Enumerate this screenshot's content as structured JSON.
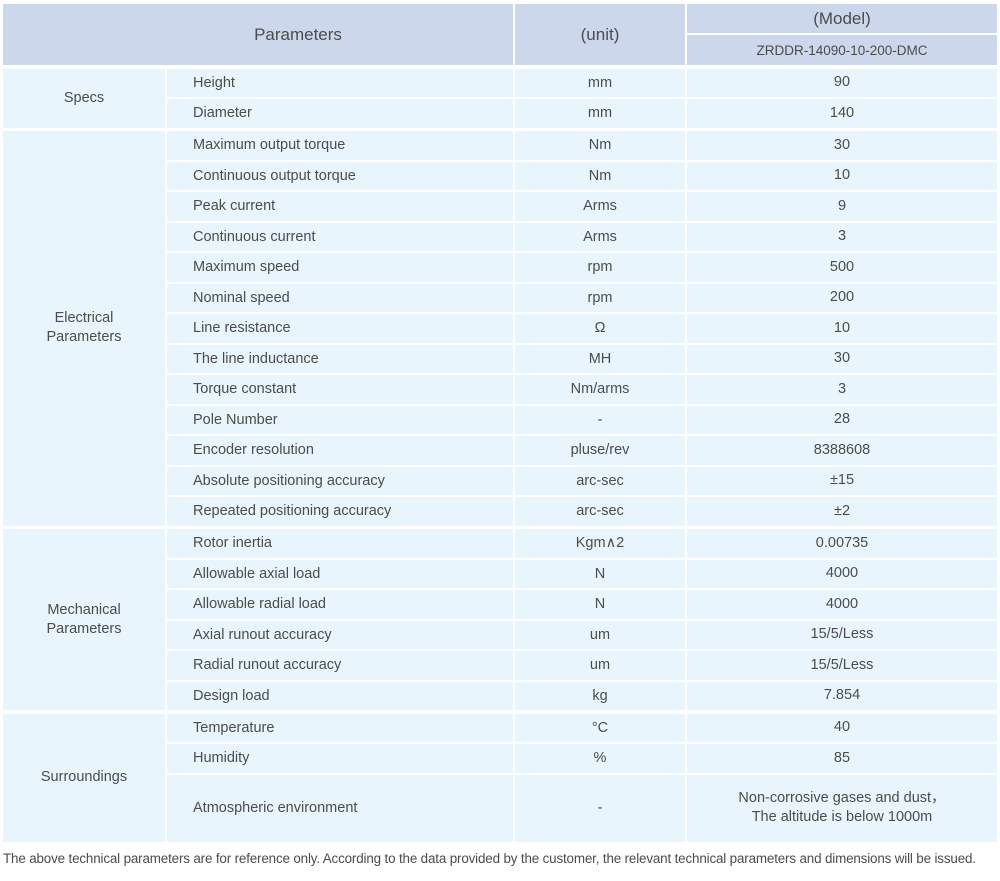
{
  "colors": {
    "header_bg": "#cdd7eb",
    "row_bg": "#e8f5fc",
    "text": "#4c4c4c"
  },
  "header": {
    "parameters_label": "Parameters",
    "unit_label": "(unit)",
    "model_label": "(Model)",
    "model_value": "ZRDDR-14090-10-200-DMC"
  },
  "groups": [
    {
      "label": "Specs",
      "rows": [
        {
          "parameter": "Height",
          "unit": "mm",
          "value": "90"
        },
        {
          "parameter": "Diameter",
          "unit": "mm",
          "value": "140"
        }
      ]
    },
    {
      "label": "Electrical Parameters",
      "rows": [
        {
          "parameter": "Maximum output torque",
          "unit": "Nm",
          "value": "30"
        },
        {
          "parameter": "Continuous output torque",
          "unit": "Nm",
          "value": "10"
        },
        {
          "parameter": "Peak current",
          "unit": "Arms",
          "value": "9"
        },
        {
          "parameter": "Continuous current",
          "unit": "Arms",
          "value": "3"
        },
        {
          "parameter": "Maximum speed",
          "unit": "rpm",
          "value": "500"
        },
        {
          "parameter": "Nominal speed",
          "unit": "rpm",
          "value": "200"
        },
        {
          "parameter": "Line resistance",
          "unit": "Ω",
          "value": "10"
        },
        {
          "parameter": "The line inductance",
          "unit": "MH",
          "value": "30"
        },
        {
          "parameter": "Torque constant",
          "unit": "Nm/arms",
          "value": "3"
        },
        {
          "parameter": "Pole Number",
          "unit": "-",
          "value": "28"
        },
        {
          "parameter": "Encoder resolution",
          "unit": "pluse/rev",
          "value": "8388608"
        },
        {
          "parameter": "Absolute positioning accuracy",
          "unit": "arc-sec",
          "value": "±15"
        },
        {
          "parameter": "Repeated positioning accuracy",
          "unit": "arc-sec",
          "value": "±2"
        }
      ]
    },
    {
      "label": "Mechanical Parameters",
      "rows": [
        {
          "parameter": "Rotor inertia",
          "unit": "Kgm∧2",
          "value": "0.00735"
        },
        {
          "parameter": "Allowable axial load",
          "unit": "N",
          "value": "4000"
        },
        {
          "parameter": "Allowable radial load",
          "unit": "N",
          "value": "4000"
        },
        {
          "parameter": "Axial runout accuracy",
          "unit": "um",
          "value": "15/5/Less"
        },
        {
          "parameter": "Radial runout accuracy",
          "unit": "um",
          "value": "15/5/Less"
        },
        {
          "parameter": "Design load",
          "unit": "kg",
          "value": "7.854"
        }
      ]
    },
    {
      "label": "Surroundings",
      "rows": [
        {
          "parameter": "Temperature",
          "unit": "°C",
          "value": "40"
        },
        {
          "parameter": "Humidity",
          "unit": "%",
          "value": "85"
        },
        {
          "parameter": "Atmospheric environment",
          "unit": "-",
          "value": "Non-corrosive gases and dust，\nThe altitude is below 1000m"
        }
      ]
    }
  ],
  "footer_note": "The above technical parameters are for reference only. According to the data provided by the customer, the relevant technical parameters and dimensions will be issued."
}
